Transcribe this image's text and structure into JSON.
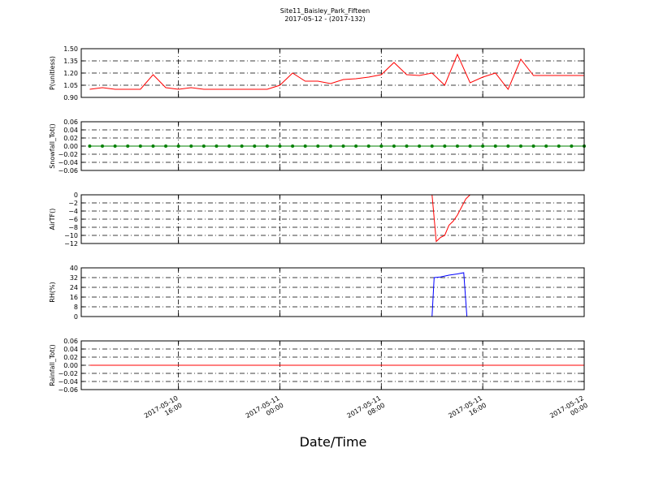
{
  "chart_data": [
    {
      "type": "line",
      "title": "Site11_Baisley_Park_Fifteen",
      "subtitle": "2017-05-12 - (2017-132)",
      "ylabel": "P(unitless)",
      "x": [
        "2017-05-10 09:00",
        "2017-05-10 10:00",
        "2017-05-10 11:00",
        "2017-05-10 12:00",
        "2017-05-10 13:00",
        "2017-05-10 14:00",
        "2017-05-10 15:00",
        "2017-05-10 16:00",
        "2017-05-10 17:00",
        "2017-05-10 18:00",
        "2017-05-10 19:00",
        "2017-05-10 20:00",
        "2017-05-10 21:00",
        "2017-05-10 22:00",
        "2017-05-10 23:00",
        "2017-05-11 00:00",
        "2017-05-11 01:00",
        "2017-05-11 02:00",
        "2017-05-11 03:00",
        "2017-05-11 04:00",
        "2017-05-11 05:00",
        "2017-05-11 06:00",
        "2017-05-11 07:00",
        "2017-05-11 08:00",
        "2017-05-11 09:00",
        "2017-05-11 10:00",
        "2017-05-11 11:00",
        "2017-05-11 12:00",
        "2017-05-11 13:00",
        "2017-05-11 14:00",
        "2017-05-11 15:00",
        "2017-05-11 16:00",
        "2017-05-11 17:00",
        "2017-05-11 18:00",
        "2017-05-11 19:00",
        "2017-05-11 20:00",
        "2017-05-11 21:00",
        "2017-05-11 22:00",
        "2017-05-11 23:00",
        "2017-05-12 00:00"
      ],
      "series": [
        {
          "color": "#ff0000",
          "values": [
            1.0,
            1.02,
            1.0,
            1.0,
            1.0,
            1.18,
            1.02,
            1.0,
            1.02,
            1.0,
            1.0,
            1.0,
            1.0,
            1.0,
            1.0,
            1.05,
            1.2,
            1.1,
            1.1,
            1.07,
            1.12,
            1.13,
            1.15,
            1.18,
            1.33,
            1.18,
            1.17,
            1.2,
            1.05,
            1.43,
            1.08,
            1.15,
            1.2,
            1.0,
            1.37,
            1.17,
            1.17,
            1.17,
            1.17,
            1.17
          ]
        }
      ],
      "xlim": [
        "2017-05-10 08:20",
        "2017-05-12 00:00"
      ],
      "xticks": [
        "2017-05-10 16:00",
        "2017-05-11 00:00",
        "2017-05-11 08:00",
        "2017-05-11 16:00",
        "2017-05-12 00:00"
      ],
      "ylim": [
        0.9,
        1.5
      ],
      "yticks": [
        {
          "value": 0.9,
          "label": "0.90"
        },
        {
          "value": 1.05,
          "label": "1.05"
        },
        {
          "value": 1.2,
          "label": "1.20"
        },
        {
          "value": 1.35,
          "label": "1.35"
        },
        {
          "value": 1.5,
          "label": "1.50"
        }
      ],
      "grid": true
    },
    {
      "type": "line",
      "ylabel": "Snowfall_Tot()",
      "markers": true,
      "x": [
        "2017-05-10 09:00",
        "2017-05-10 10:00",
        "2017-05-10 11:00",
        "2017-05-10 12:00",
        "2017-05-10 13:00",
        "2017-05-10 14:00",
        "2017-05-10 15:00",
        "2017-05-10 16:00",
        "2017-05-10 17:00",
        "2017-05-10 18:00",
        "2017-05-10 19:00",
        "2017-05-10 20:00",
        "2017-05-10 21:00",
        "2017-05-10 22:00",
        "2017-05-10 23:00",
        "2017-05-11 00:00",
        "2017-05-11 01:00",
        "2017-05-11 02:00",
        "2017-05-11 03:00",
        "2017-05-11 04:00",
        "2017-05-11 05:00",
        "2017-05-11 06:00",
        "2017-05-11 07:00",
        "2017-05-11 08:00",
        "2017-05-11 09:00",
        "2017-05-11 10:00",
        "2017-05-11 11:00",
        "2017-05-11 12:00",
        "2017-05-11 13:00",
        "2017-05-11 14:00",
        "2017-05-11 15:00",
        "2017-05-11 16:00",
        "2017-05-11 17:00",
        "2017-05-11 18:00",
        "2017-05-11 19:00",
        "2017-05-11 20:00",
        "2017-05-11 21:00",
        "2017-05-11 22:00",
        "2017-05-11 23:00",
        "2017-05-12 00:00"
      ],
      "series": [
        {
          "color": "#008000",
          "values": [
            0,
            0,
            0,
            0,
            0,
            0,
            0,
            0,
            0,
            0,
            0,
            0,
            0,
            0,
            0,
            0,
            0,
            0,
            0,
            0,
            0,
            0,
            0,
            0,
            0,
            0,
            0,
            0,
            0,
            0,
            0,
            0,
            0,
            0,
            0,
            0,
            0,
            0,
            0,
            0
          ]
        }
      ],
      "xlim": [
        "2017-05-10 08:20",
        "2017-05-12 00:00"
      ],
      "xticks": [
        "2017-05-10 16:00",
        "2017-05-11 00:00",
        "2017-05-11 08:00",
        "2017-05-11 16:00",
        "2017-05-12 00:00"
      ],
      "ylim": [
        -0.06,
        0.06
      ],
      "yticks": [
        {
          "value": -0.06,
          "label": "−0.06"
        },
        {
          "value": -0.04,
          "label": "−0.04"
        },
        {
          "value": -0.02,
          "label": "−0.02"
        },
        {
          "value": 0,
          "label": "0.00"
        },
        {
          "value": 0.02,
          "label": "0.02"
        },
        {
          "value": 0.04,
          "label": "0.04"
        },
        {
          "value": 0.06,
          "label": "0.06"
        }
      ],
      "grid": true
    },
    {
      "type": "line",
      "ylabel": "AirTF()",
      "x": [
        "2017-05-11 12:00",
        "2017-05-11 12:20",
        "2017-05-11 12:40",
        "2017-05-11 13:00",
        "2017-05-11 13:20",
        "2017-05-11 13:40",
        "2017-05-11 14:00",
        "2017-05-11 14:20",
        "2017-05-11 14:40",
        "2017-05-11 15:00"
      ],
      "series": [
        {
          "color": "#ff0000",
          "values": [
            0,
            -11.5,
            -10.5,
            -10,
            -7.5,
            -6.5,
            -5,
            -3,
            -1,
            0
          ]
        }
      ],
      "xlim": [
        "2017-05-10 08:20",
        "2017-05-12 00:00"
      ],
      "xticks": [
        "2017-05-10 16:00",
        "2017-05-11 00:00",
        "2017-05-11 08:00",
        "2017-05-11 16:00",
        "2017-05-12 00:00"
      ],
      "ylim": [
        -12,
        0
      ],
      "yticks": [
        {
          "value": -12,
          "label": "−12"
        },
        {
          "value": -10,
          "label": "−10"
        },
        {
          "value": -8,
          "label": "−8"
        },
        {
          "value": -6,
          "label": "−6"
        },
        {
          "value": -4,
          "label": "−4"
        },
        {
          "value": -2,
          "label": "−2"
        },
        0
      ],
      "grid": true
    },
    {
      "type": "line",
      "ylabel": "RH(%)",
      "x": [
        "2017-05-10 08:20",
        "2017-05-11 12:00",
        "2017-05-11 12:10",
        "2017-05-11 12:40",
        "2017-05-11 13:20",
        "2017-05-11 14:00",
        "2017-05-11 14:30",
        "2017-05-11 14:45",
        "2017-05-12 00:00"
      ],
      "series": [
        {
          "color": "#0000ff",
          "values": [
            0,
            0,
            32,
            32.5,
            34,
            35,
            36,
            0,
            0
          ]
        }
      ],
      "xlim": [
        "2017-05-10 08:20",
        "2017-05-12 00:00"
      ],
      "xticks": [
        "2017-05-10 16:00",
        "2017-05-11 00:00",
        "2017-05-11 08:00",
        "2017-05-11 16:00",
        "2017-05-12 00:00"
      ],
      "ylim": [
        0,
        40
      ],
      "yticks": [
        0,
        8,
        16,
        24,
        32,
        40
      ],
      "grid": true
    },
    {
      "type": "line",
      "ylabel": "Rainfall_Tot()",
      "xlabel": "Date/Time",
      "x": [
        "2017-05-10 09:00",
        "2017-05-10 10:00",
        "2017-05-10 11:00",
        "2017-05-10 12:00",
        "2017-05-10 13:00",
        "2017-05-10 14:00",
        "2017-05-10 15:00",
        "2017-05-10 16:00",
        "2017-05-10 17:00",
        "2017-05-10 18:00",
        "2017-05-10 19:00",
        "2017-05-10 20:00",
        "2017-05-10 21:00",
        "2017-05-10 22:00",
        "2017-05-10 23:00",
        "2017-05-11 00:00",
        "2017-05-11 01:00",
        "2017-05-11 02:00",
        "2017-05-11 03:00",
        "2017-05-11 04:00",
        "2017-05-11 05:00",
        "2017-05-11 06:00",
        "2017-05-11 07:00",
        "2017-05-11 08:00",
        "2017-05-11 09:00",
        "2017-05-11 10:00",
        "2017-05-11 11:00",
        "2017-05-11 12:00",
        "2017-05-11 13:00",
        "2017-05-11 14:00",
        "2017-05-11 15:00",
        "2017-05-11 16:00",
        "2017-05-11 17:00",
        "2017-05-11 18:00",
        "2017-05-11 19:00",
        "2017-05-11 20:00",
        "2017-05-11 21:00",
        "2017-05-11 22:00",
        "2017-05-11 23:00",
        "2017-05-12 00:00"
      ],
      "series": [
        {
          "color": "#ff0000",
          "values": [
            0,
            0,
            0,
            0,
            0,
            0,
            0,
            0,
            0,
            0,
            0,
            0,
            0,
            0,
            0,
            0,
            0,
            0,
            0,
            0,
            0,
            0,
            0,
            0,
            0,
            0,
            0,
            0,
            0,
            0,
            0,
            0,
            0,
            0,
            0,
            0,
            0,
            0,
            0,
            0
          ]
        }
      ],
      "xlim": [
        "2017-05-10 08:20",
        "2017-05-12 00:00"
      ],
      "xticks": [
        "2017-05-10 16:00",
        "2017-05-11 00:00",
        "2017-05-11 08:00",
        "2017-05-11 16:00",
        "2017-05-12 00:00"
      ],
      "show_xtick_labels": true,
      "ylim": [
        -0.06,
        0.06
      ],
      "yticks": [
        {
          "value": -0.06,
          "label": "−0.06"
        },
        {
          "value": -0.04,
          "label": "−0.04"
        },
        {
          "value": -0.02,
          "label": "−0.02"
        },
        {
          "value": 0,
          "label": "0.00"
        },
        {
          "value": 0.02,
          "label": "0.02"
        },
        {
          "value": 0.04,
          "label": "0.04"
        },
        {
          "value": 0.06,
          "label": "0.06"
        }
      ],
      "grid": true
    }
  ]
}
